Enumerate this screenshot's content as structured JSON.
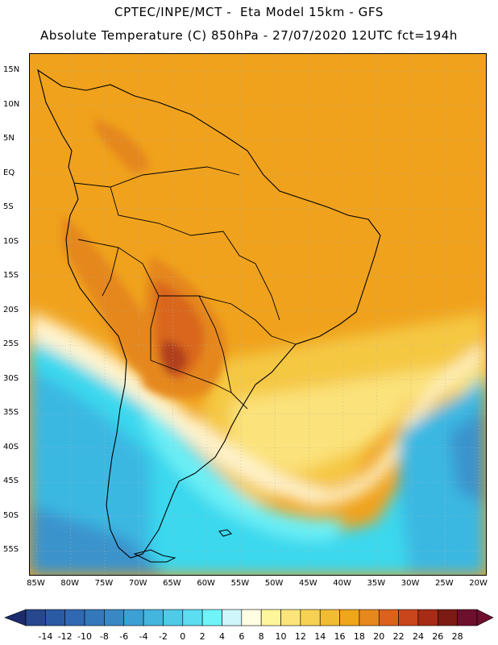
{
  "title_line1": "CPTEC/INPE/MCT -  Eta Model 15km - GFS",
  "title_line2": "Absolute Temperature (C) 850hPa - 27/07/2020 12UTC fct=194h",
  "map": {
    "lon_range": [
      -86,
      -19
    ],
    "lat_range": [
      -58.5,
      17.5
    ],
    "lat_ticks": [
      "15N",
      "10N",
      "5N",
      "EQ",
      "5S",
      "10S",
      "15S",
      "20S",
      "25S",
      "30S",
      "35S",
      "40S",
      "45S",
      "50S",
      "55S"
    ],
    "lat_values": [
      15,
      10,
      5,
      0,
      -5,
      -10,
      -15,
      -20,
      -25,
      -30,
      -35,
      -40,
      -45,
      -50,
      -55
    ],
    "lon_ticks": [
      "85W",
      "80W",
      "75W",
      "70W",
      "65W",
      "60W",
      "55W",
      "50W",
      "45W",
      "40W",
      "35W",
      "30W",
      "25W",
      "20W"
    ],
    "lon_values": [
      -85,
      -80,
      -75,
      -70,
      -65,
      -60,
      -55,
      -50,
      -45,
      -40,
      -35,
      -30,
      -25,
      -20
    ],
    "background_colors": {
      "warm_orange": "#f0a21c",
      "hot_orange": "#e5871d",
      "hotter": "#d9661b",
      "hottest": "#b0401a",
      "yellow_band": "#f5c842",
      "light_yellow": "#fbe27a",
      "pale": "#fff4cf",
      "cyan_light": "#6df0f6",
      "cyan": "#3ad8ee",
      "sky": "#3ab8e2",
      "mid_blue": "#3a93cc",
      "deep_blue": "#2f6fb2",
      "coast": "#000000",
      "grid": "#b3b3b3"
    }
  },
  "colorbar": {
    "labels": [
      "-14",
      "-12",
      "-10",
      "-8",
      "-6",
      "-4",
      "-2",
      "0",
      "2",
      "4",
      "6",
      "8",
      "10",
      "12",
      "14",
      "16",
      "18",
      "20",
      "22",
      "24",
      "26",
      "28"
    ],
    "colors": [
      "#27478f",
      "#2b5aa5",
      "#3168b3",
      "#3378bb",
      "#3988c5",
      "#3da0d4",
      "#45b5de",
      "#4fcae7",
      "#5cddf0",
      "#6ef5f8",
      "#cff6fb",
      "#fffde2",
      "#fff59a",
      "#fbe57a",
      "#f6d153",
      "#f2bc32",
      "#efa61a",
      "#e6881c",
      "#dc621b",
      "#c9451b",
      "#a72c16",
      "#7c1a14",
      "#6e0f2e"
    ],
    "arrow_left_color": "#1b2b6b",
    "arrow_right_color": "#6e0f2e"
  }
}
